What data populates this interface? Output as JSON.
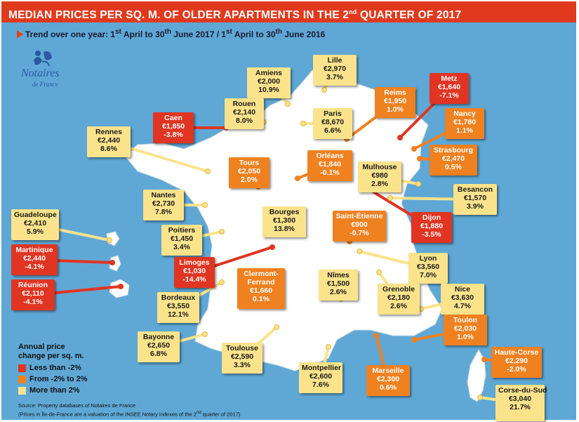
{
  "header": {
    "title_main": "MEDIAN PRICES PER SQ. M. OF OLDER APARTMENTS IN THE 2",
    "title_sup": "nd",
    "title_end": " QUARTER OF 2017"
  },
  "trend": {
    "part1": "Trend over one year: 1",
    "sup1": "st",
    "part2": " April to 30",
    "sup2": "th",
    "part3": " June 2017 / 1",
    "sup3": "st",
    "part4": " April to 30",
    "sup4": "th",
    "part5": " June 2016"
  },
  "logo": {
    "name": "Notaires",
    "sub": "de France",
    "icon": "notaires-logo-icon"
  },
  "colors": {
    "water": "#5fa8d6",
    "land": "#ffffff",
    "less_than_minus2": "#e03522",
    "minus2_to_2": "#ef8120",
    "more_than_2": "#fbe38c",
    "header": "#e03a1e"
  },
  "cities": [
    {
      "name": "Lille",
      "price": "€2,970",
      "change": "3.7%",
      "cat": "y"
    },
    {
      "name": "Amiens",
      "price": "€2,000",
      "change": "10.9%",
      "cat": "y"
    },
    {
      "name": "Metz",
      "price": "€1,640",
      "change": "-7.1%",
      "cat": "r"
    },
    {
      "name": "Reims",
      "price": "€1,950",
      "change": "1.0%",
      "cat": "o"
    },
    {
      "name": "Rouen",
      "price": "€2,140",
      "change": "8.0%",
      "cat": "y"
    },
    {
      "name": "Paris",
      "price": "€8,670",
      "change": "6.6%",
      "cat": "y"
    },
    {
      "name": "Caen",
      "price": "€1,850",
      "change": "-3.8%",
      "cat": "r"
    },
    {
      "name": "Nancy",
      "price": "€1,780",
      "change": "1.1%",
      "cat": "o"
    },
    {
      "name": "Rennes",
      "price": "€2,440",
      "change": "8.6%",
      "cat": "y"
    },
    {
      "name": "Strasbourg",
      "price": "€2,470",
      "change": "0.5%",
      "cat": "o"
    },
    {
      "name": "Tours",
      "price": "€2,050",
      "change": "2.0%",
      "cat": "o"
    },
    {
      "name": "Orléans",
      "price": "€1,840",
      "change": "-0.1%",
      "cat": "o"
    },
    {
      "name": "Mulhouse",
      "price": "€980",
      "change": "2.8%",
      "cat": "y"
    },
    {
      "name": "Nantes",
      "price": "€2,730",
      "change": "7.8%",
      "cat": "y"
    },
    {
      "name": "Besancon",
      "price": "€1,570",
      "change": "3.9%",
      "cat": "y"
    },
    {
      "name": "Bourges",
      "price": "€1,300",
      "change": "13.8%",
      "cat": "y"
    },
    {
      "name": "Saint-Étienne",
      "price": "€900",
      "change": "-0.7%",
      "cat": "o"
    },
    {
      "name": "Dijon",
      "price": "€1,880",
      "change": "-3.5%",
      "cat": "r"
    },
    {
      "name": "Guadeloupe",
      "price": "€2,410",
      "change": "5.9%",
      "cat": "y"
    },
    {
      "name": "Poitiers",
      "price": "€1,450",
      "change": "3.4%",
      "cat": "y"
    },
    {
      "name": "Martinique",
      "price": "€2,440",
      "change": "-4.1%",
      "cat": "r"
    },
    {
      "name": "Limoges",
      "price": "€1,030",
      "change": "-14.4%",
      "cat": "r"
    },
    {
      "name": "Lyon",
      "price": "€3,560",
      "change": "7.0%",
      "cat": "y"
    },
    {
      "name": "Clermont-Ferrand",
      "name1": "Clermont-",
      "name2": "Ferrand",
      "price": "€1,660",
      "change": "0.1%",
      "cat": "o"
    },
    {
      "name": "Nîmes",
      "price": "€1,500",
      "change": "2.6%",
      "cat": "y"
    },
    {
      "name": "Réunion",
      "price": "€2,110",
      "change": "-4.1%",
      "cat": "r"
    },
    {
      "name": "Bordeaux",
      "price": "€3,550",
      "change": "12.1%",
      "cat": "y"
    },
    {
      "name": "Grenoble",
      "price": "€2,180",
      "change": "2.6%",
      "cat": "y"
    },
    {
      "name": "Nice",
      "price": "€3,630",
      "change": "4.7%",
      "cat": "y"
    },
    {
      "name": "Toulon",
      "price": "€2,030",
      "change": "1.0%",
      "cat": "o"
    },
    {
      "name": "Bayonne",
      "price": "€2,650",
      "change": "6.8%",
      "cat": "y"
    },
    {
      "name": "Toulouse",
      "price": "€2,590",
      "change": "3.3%",
      "cat": "y"
    },
    {
      "name": "Haute-Corse",
      "price": "€2,290",
      "change": "-2.0%",
      "cat": "o"
    },
    {
      "name": "Marseille",
      "price": "€2,300",
      "change": "0.6%",
      "cat": "o"
    },
    {
      "name": "Montpellier",
      "price": "€2,600",
      "change": "7.6%",
      "cat": "y"
    },
    {
      "name": "Corse-du-Sud",
      "price": "€3,040",
      "change": "21.7%",
      "cat": "y"
    }
  ],
  "legend": {
    "title1": "Annual price",
    "title2": "change per sq. m.",
    "items": [
      "Less than -2%",
      "From -2% to 2%",
      "More than 2%"
    ]
  },
  "source": {
    "line1": "Source: Property databases of Notaires de France",
    "line2": "(Prices in Île-de-France are a valuation of the INSEE Notary indexes of the 2",
    "line2_sup": "nd",
    "line2_end": " quarter of 2017)"
  }
}
